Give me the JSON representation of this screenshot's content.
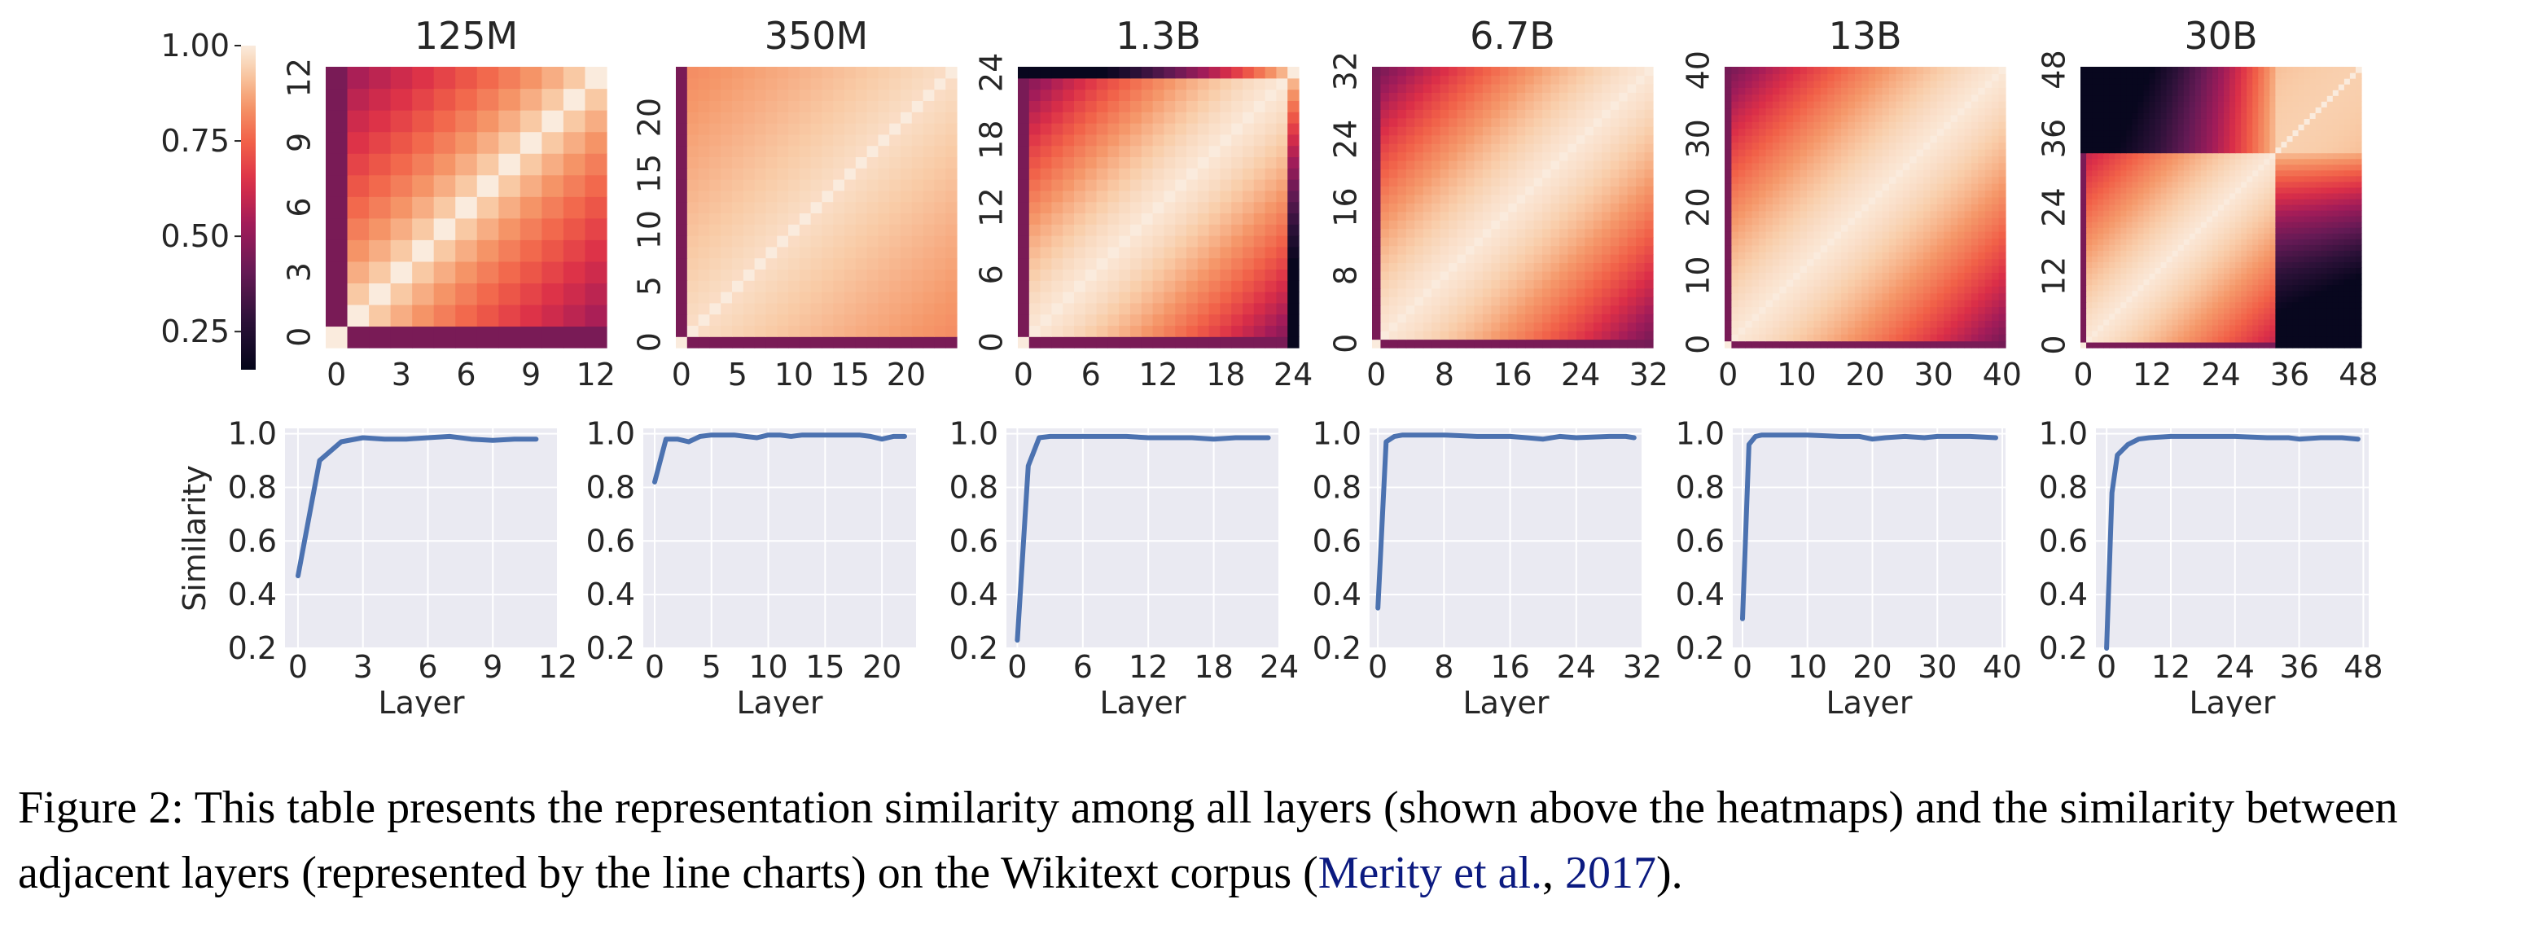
{
  "colors": {
    "heatmap_colormap": "rocket",
    "line_color": "#4c72b0",
    "plot_background": "#eaeaf2",
    "grid_color": "#ffffff",
    "citation_color": "#0b1a80"
  },
  "chart_data": [
    {
      "type": "heatmap",
      "title": "125M",
      "n_layers": 13,
      "size": 13,
      "block_end": 13,
      "xticks": [
        0,
        3,
        6,
        9,
        12
      ],
      "yticks": [
        0,
        3,
        6,
        9,
        12
      ],
      "colorbar": {
        "range": [
          0.15,
          1.0
        ],
        "ticks": [
          "1.00",
          "0.75",
          "0.50",
          "0.25"
        ]
      },
      "description_of_pattern": "bright diagonal; layers 0-1 dissimilar from the rest"
    },
    {
      "type": "heatmap",
      "title": "350M",
      "n_layers": 25,
      "size": 25,
      "block_end": 25,
      "xticks": [
        0,
        5,
        10,
        15,
        20
      ],
      "yticks": [
        0,
        5,
        10,
        15,
        20
      ]
    },
    {
      "type": "heatmap",
      "title": "1.3B",
      "n_layers": 25,
      "size": 25,
      "block_end": 24,
      "xticks": [
        0,
        6,
        12,
        18,
        24
      ],
      "yticks": [
        0,
        6,
        12,
        18,
        24
      ]
    },
    {
      "type": "heatmap",
      "title": "6.7B",
      "n_layers": 33,
      "size": 33,
      "block_end": 33,
      "xticks": [
        0,
        8,
        16,
        24,
        32
      ],
      "yticks": [
        0,
        8,
        16,
        24,
        32
      ]
    },
    {
      "type": "heatmap",
      "title": "13B",
      "n_layers": 41,
      "size": 41,
      "block_end": 41,
      "xticks": [
        0,
        10,
        20,
        30,
        40
      ],
      "yticks": [
        0,
        10,
        20,
        30,
        40
      ]
    },
    {
      "type": "heatmap",
      "title": "30B",
      "n_layers": 49,
      "size": 49,
      "block_end": 34,
      "xticks": [
        0,
        12,
        24,
        36,
        48
      ],
      "yticks": [
        0,
        12,
        24,
        36,
        48
      ]
    },
    {
      "type": "line",
      "ylabel": "Similarity",
      "xlabel": "Layer",
      "xlim": [
        -0.6,
        12
      ],
      "ylim": [
        0.2,
        1.02
      ],
      "xticks": [
        0,
        3,
        6,
        9,
        12
      ],
      "yticks": [
        0.2,
        0.4,
        0.6,
        0.8,
        1.0
      ],
      "x": [
        0,
        1,
        2,
        3,
        4,
        5,
        6,
        7,
        8,
        9,
        10,
        11
      ],
      "y": [
        0.47,
        0.9,
        0.97,
        0.985,
        0.98,
        0.98,
        0.985,
        0.99,
        0.98,
        0.975,
        0.98,
        0.98
      ]
    },
    {
      "type": "line",
      "ylabel": "",
      "xlabel": "Layer",
      "xlim": [
        -1,
        23
      ],
      "ylim": [
        0.2,
        1.02
      ],
      "xticks": [
        0,
        5,
        10,
        15,
        20
      ],
      "yticks": [
        0.2,
        0.4,
        0.6,
        0.8,
        1.0
      ],
      "x": [
        0,
        1,
        2,
        3,
        4,
        5,
        6,
        7,
        8,
        9,
        10,
        11,
        12,
        13,
        14,
        15,
        16,
        17,
        18,
        19,
        20,
        21,
        22
      ],
      "y": [
        0.82,
        0.98,
        0.98,
        0.97,
        0.99,
        0.995,
        0.995,
        0.995,
        0.99,
        0.985,
        0.995,
        0.995,
        0.99,
        0.995,
        0.995,
        0.995,
        0.995,
        0.995,
        0.995,
        0.99,
        0.98,
        0.99,
        0.99
      ]
    },
    {
      "type": "line",
      "ylabel": "",
      "xlabel": "Layer",
      "xlim": [
        -1,
        24
      ],
      "ylim": [
        0.2,
        1.02
      ],
      "xticks": [
        0,
        6,
        12,
        18,
        24
      ],
      "yticks": [
        0.2,
        0.4,
        0.6,
        0.8,
        1.0
      ],
      "x": [
        0,
        1,
        2,
        3,
        4,
        6,
        8,
        10,
        12,
        14,
        16,
        18,
        20,
        22,
        23
      ],
      "y": [
        0.23,
        0.88,
        0.985,
        0.99,
        0.99,
        0.99,
        0.99,
        0.99,
        0.985,
        0.985,
        0.985,
        0.98,
        0.985,
        0.985,
        0.985
      ]
    },
    {
      "type": "line",
      "ylabel": "",
      "xlabel": "Layer",
      "xlim": [
        -1,
        32
      ],
      "ylim": [
        0.2,
        1.02
      ],
      "xticks": [
        0,
        8,
        16,
        24,
        32
      ],
      "yticks": [
        0.2,
        0.4,
        0.6,
        0.8,
        1.0
      ],
      "x": [
        0,
        1,
        2,
        3,
        4,
        8,
        12,
        16,
        18,
        20,
        22,
        24,
        28,
        30,
        31
      ],
      "y": [
        0.35,
        0.97,
        0.99,
        0.995,
        0.995,
        0.995,
        0.99,
        0.99,
        0.985,
        0.98,
        0.99,
        0.985,
        0.99,
        0.99,
        0.985
      ]
    },
    {
      "type": "line",
      "ylabel": "",
      "xlabel": "Layer",
      "xlim": [
        -1.5,
        40.5
      ],
      "ylim": [
        0.2,
        1.02
      ],
      "xticks": [
        0,
        10,
        20,
        30,
        40
      ],
      "yticks": [
        0.2,
        0.4,
        0.6,
        0.8,
        1.0
      ],
      "x": [
        0,
        1,
        2,
        3,
        5,
        10,
        15,
        18,
        20,
        22,
        25,
        28,
        30,
        35,
        39
      ],
      "y": [
        0.31,
        0.96,
        0.99,
        0.995,
        0.995,
        0.995,
        0.99,
        0.99,
        0.98,
        0.985,
        0.99,
        0.985,
        0.99,
        0.99,
        0.985
      ]
    },
    {
      "type": "line",
      "ylabel": "",
      "xlabel": "Layer",
      "xlim": [
        -2,
        49
      ],
      "ylim": [
        0.2,
        1.02
      ],
      "xticks": [
        0,
        12,
        24,
        36,
        48
      ],
      "yticks": [
        0.2,
        0.4,
        0.6,
        0.8,
        1.0
      ],
      "x": [
        0,
        1,
        2,
        3,
        4,
        6,
        8,
        12,
        18,
        24,
        30,
        34,
        36,
        40,
        44,
        47
      ],
      "y": [
        0.2,
        0.78,
        0.92,
        0.94,
        0.96,
        0.98,
        0.985,
        0.99,
        0.99,
        0.99,
        0.985,
        0.985,
        0.98,
        0.985,
        0.985,
        0.98
      ]
    }
  ],
  "caption": {
    "text_before_citation": "Figure 2: This table presents the representation similarity among all layers (shown above the heatmaps) and the similarity between adjacent layers (represented by the line charts) on the Wikitext corpus (",
    "citation_author": "Merity et al.",
    "citation_sep": ", ",
    "citation_year": "2017",
    "text_after_citation": ")."
  }
}
